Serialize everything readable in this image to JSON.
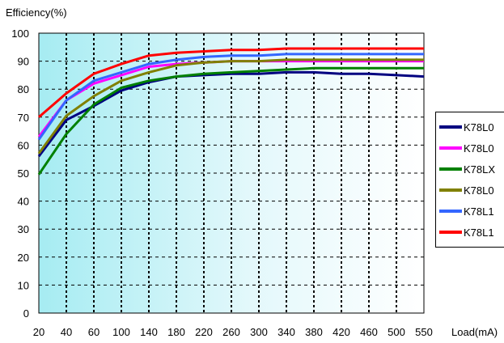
{
  "chart_data": {
    "type": "line",
    "ylabel": "Efficiency(%)",
    "xlabel": "Load(mA)",
    "categories": [
      "20",
      "40",
      "60",
      "100",
      "140",
      "180",
      "220",
      "260",
      "300",
      "340",
      "380",
      "420",
      "460",
      "500",
      "550"
    ],
    "ylim": [
      0,
      100
    ],
    "yticks": [
      0,
      10,
      20,
      30,
      40,
      50,
      60,
      70,
      80,
      90,
      100
    ],
    "grid": true,
    "legend_position": "right",
    "series": [
      {
        "name": "K78L0",
        "color": "#000080",
        "values": [
          56,
          69,
          74,
          79.5,
          82.5,
          84.5,
          85,
          85.5,
          85.5,
          86,
          86,
          85.5,
          85.5,
          85,
          84.5
        ]
      },
      {
        "name": "K78L0",
        "color": "#ff00ff",
        "values": [
          63,
          76,
          82,
          85,
          88,
          89,
          89.5,
          90,
          90,
          90,
          90,
          90,
          90,
          90,
          90
        ]
      },
      {
        "name": "K78LX",
        "color": "#008000",
        "values": [
          49.5,
          64,
          74.5,
          80.5,
          83,
          84.5,
          85.5,
          86,
          86.5,
          87,
          87.5,
          87.5,
          87.5,
          87.5,
          87.5
        ]
      },
      {
        "name": "K78L0",
        "color": "#808000",
        "values": [
          57,
          70.5,
          77.5,
          83,
          86,
          88.5,
          89.5,
          90,
          90,
          90.5,
          90.5,
          90.5,
          90.5,
          90.5,
          90.5
        ]
      },
      {
        "name": "K78L1",
        "color": "#3366ff",
        "values": [
          62,
          76,
          83,
          86,
          89,
          90.5,
          91.5,
          92,
          92,
          92.5,
          92.5,
          92.5,
          92.5,
          92.5,
          92.5
        ]
      },
      {
        "name": "K78L1",
        "color": "#ff0000",
        "values": [
          70,
          78.5,
          85.5,
          89,
          92,
          93,
          93.5,
          94,
          94,
          94.5,
          94.5,
          94.5,
          94.5,
          94.5,
          94.5
        ]
      }
    ]
  }
}
